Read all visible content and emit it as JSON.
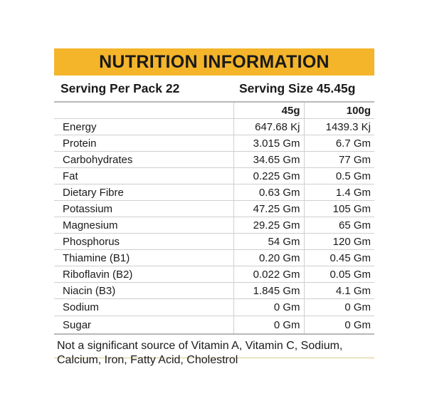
{
  "header": {
    "title": "NUTRITION INFORMATION"
  },
  "serving": {
    "per_pack": "Serving Per Pack 22",
    "size": "Serving Size 45.45g"
  },
  "table": {
    "columns": [
      "45g",
      "100g"
    ],
    "rows": [
      {
        "name": "Energy",
        "v45": "647.68 Kj",
        "v100": "1439.3 Kj"
      },
      {
        "name": "Protein",
        "v45": "3.015 Gm",
        "v100": "6.7 Gm"
      },
      {
        "name": "Carbohydrates",
        "v45": "34.65 Gm",
        "v100": "77 Gm"
      },
      {
        "name": "Fat",
        "v45": "0.225 Gm",
        "v100": "0.5 Gm"
      },
      {
        "name": "Dietary Fibre",
        "v45": "0.63 Gm",
        "v100": "1.4 Gm"
      },
      {
        "name": "Potassium",
        "v45": "47.25 Gm",
        "v100": "105 Gm"
      },
      {
        "name": "Magnesium",
        "v45": "29.25 Gm",
        "v100": "65 Gm"
      },
      {
        "name": "Phosphorus",
        "v45": "54 Gm",
        "v100": "120 Gm"
      },
      {
        "name": "Thiamine (B1)",
        "v45": "0.20 Gm",
        "v100": "0.45 Gm"
      },
      {
        "name": "Riboflavin (B2)",
        "v45": "0.022 Gm",
        "v100": "0.05 Gm"
      },
      {
        "name": "Niacin (B3)",
        "v45": "1.845 Gm",
        "v100": "4.1 Gm"
      },
      {
        "name": "Sodium",
        "v45": "0 Gm",
        "v100": "0 Gm"
      },
      {
        "name": "Sugar",
        "v45": "0 Gm",
        "v100": "0 Gm"
      }
    ]
  },
  "footnote": "Not a significant source of Vitamin A, Vitamin C, Sodium, Calcium, Iron, Fatty Acid, Cholestrol",
  "colors": {
    "title_bar": "#f4b52a"
  }
}
